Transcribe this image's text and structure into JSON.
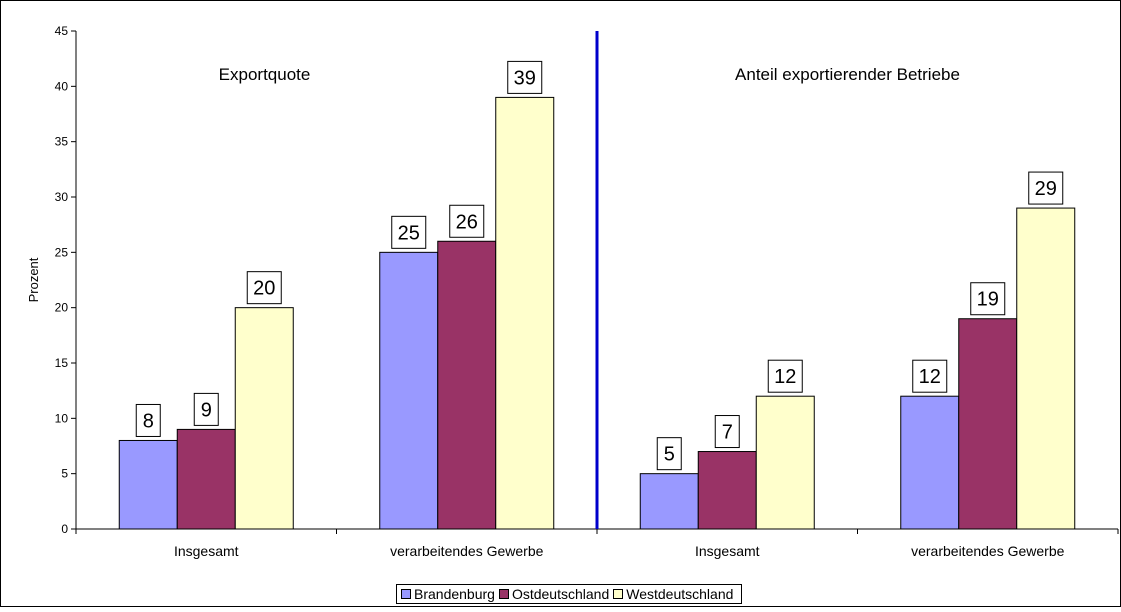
{
  "chart_data": {
    "type": "bar",
    "title": "",
    "ylabel": "Prozent",
    "xlabel": "",
    "ylim": [
      0,
      45
    ],
    "yticks": [
      0,
      5,
      10,
      15,
      20,
      25,
      30,
      35,
      40,
      45
    ],
    "grid": false,
    "legend_placement": "bottom",
    "panels": [
      {
        "title": "Exportquote",
        "categories": [
          "Insgesamt",
          "verarbeitendes Gewerbe"
        ],
        "series": [
          {
            "name": "Brandenburg",
            "values": [
              8,
              25
            ]
          },
          {
            "name": "Ostdeutschland",
            "values": [
              9,
              26
            ]
          },
          {
            "name": "Westdeutschland",
            "values": [
              20,
              39
            ]
          }
        ]
      },
      {
        "title": "Anteil exportierender Betriebe",
        "categories": [
          "Insgesamt",
          "verarbeitendes Gewerbe"
        ],
        "series": [
          {
            "name": "Brandenburg",
            "values": [
              5,
              12
            ]
          },
          {
            "name": "Ostdeutschland",
            "values": [
              7,
              19
            ]
          },
          {
            "name": "Westdeutschland",
            "values": [
              12,
              29
            ]
          }
        ]
      }
    ],
    "legend": [
      "Brandenburg",
      "Ostdeutschland",
      "Westdeutschland"
    ],
    "colors": {
      "Brandenburg": "#9999ff",
      "Ostdeutschland": "#993366",
      "Westdeutschland": "#ffffcc",
      "divider": "#0000cc"
    }
  }
}
